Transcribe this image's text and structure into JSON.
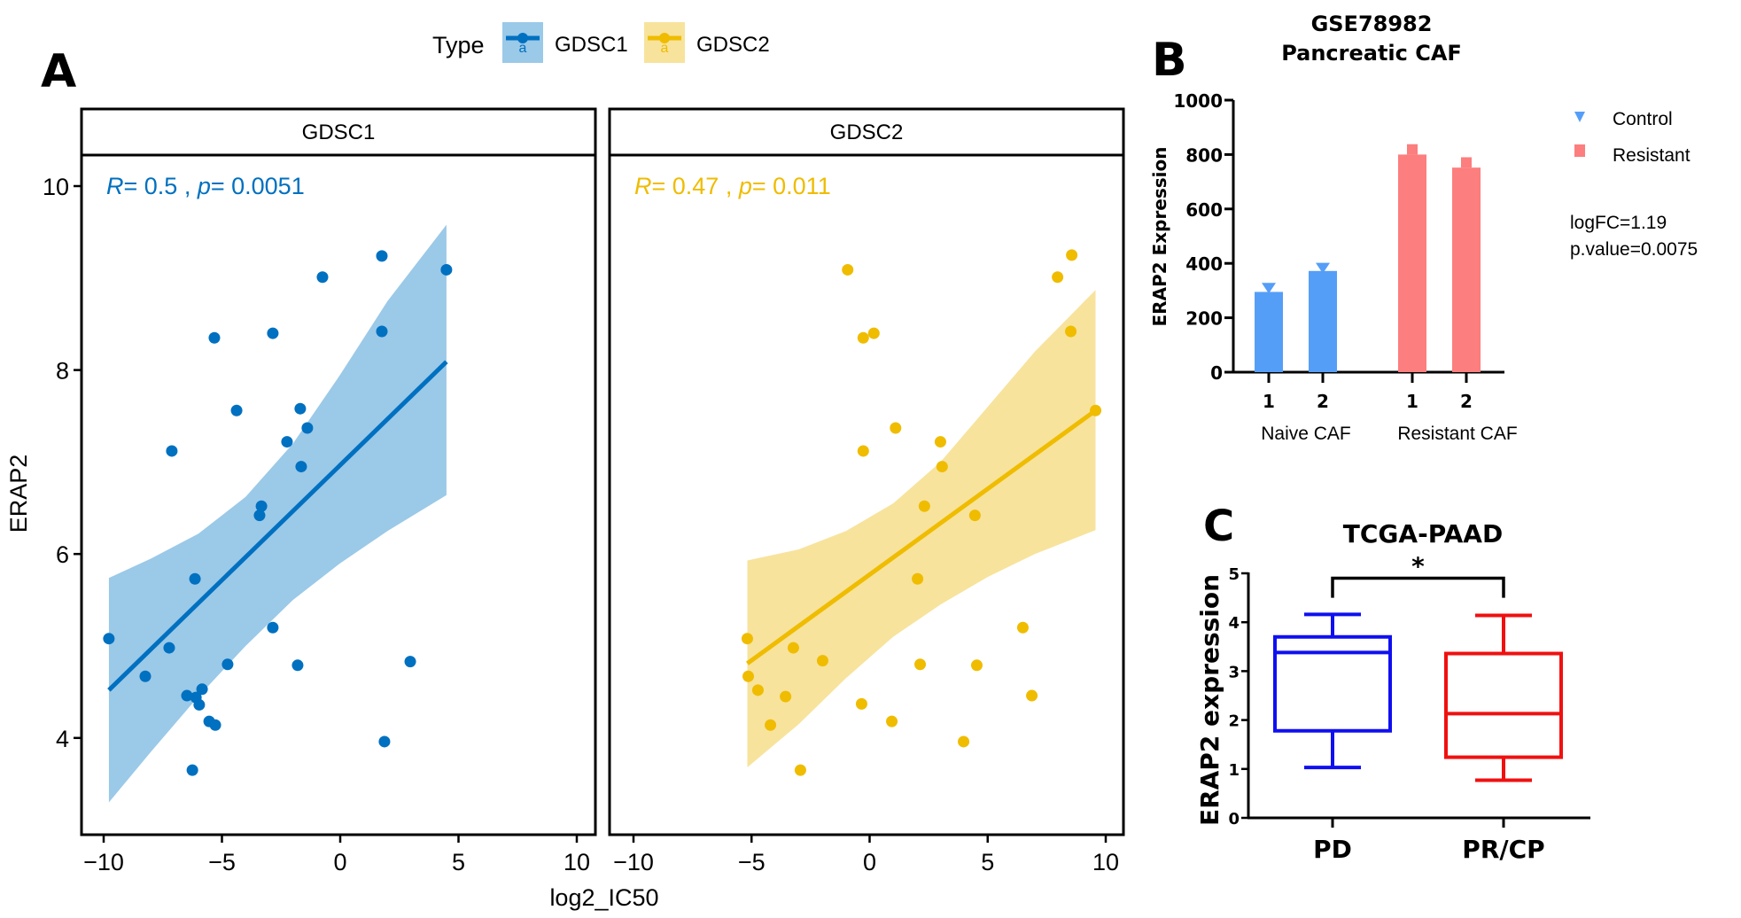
{
  "figure": {
    "panel_labels": {
      "A": "A",
      "B": "B",
      "C": "C"
    },
    "colors": {
      "gdsc1": "#0070C0",
      "gdsc1_band": "#9BC9E8",
      "gdsc2": "#EFBC00",
      "gdsc2_band": "#F7E39C",
      "control": "#559EF8",
      "resistant": "#FC7E7E",
      "pd": "#0F0FF0",
      "prcp": "#F01010"
    }
  },
  "chart_data": [
    {
      "id": "A",
      "type": "scatter",
      "legend": {
        "title": "Type",
        "entries": [
          "GDSC1",
          "GDSC2"
        ],
        "position": "top"
      },
      "xlabel": "log2_IC50",
      "ylabel": "ERAP2",
      "xlim": [
        -11,
        11
      ],
      "ylim": [
        2.7,
        10.5
      ],
      "xticks": [
        -10,
        -5,
        0,
        5,
        10
      ],
      "xtick_labels": [
        "−10",
        "−5",
        "0",
        "5",
        "10"
      ],
      "yticks": [
        4,
        6,
        8,
        10
      ],
      "ytick_labels": [
        "4",
        "6",
        "8",
        "10"
      ],
      "grid": false,
      "facets": [
        {
          "name": "GDSC1",
          "annotation": {
            "R_label": "R",
            "R_value": "= 0.5",
            "sep": " , ",
            "p_label": "p",
            "p_value": "= 0.0051"
          },
          "points": [
            [
              -9.78,
              5.08
            ],
            [
              -8.24,
              4.67
            ],
            [
              -7.23,
              4.98
            ],
            [
              -7.12,
              7.12
            ],
            [
              -6.48,
              4.46
            ],
            [
              -6.25,
              3.65
            ],
            [
              -6.14,
              5.73
            ],
            [
              -6.1,
              4.44
            ],
            [
              -5.96,
              4.36
            ],
            [
              -5.84,
              4.53
            ],
            [
              -5.54,
              4.18
            ],
            [
              -5.32,
              8.35
            ],
            [
              -5.28,
              4.14
            ],
            [
              -4.76,
              4.8
            ],
            [
              -4.38,
              7.56
            ],
            [
              -3.41,
              6.42
            ],
            [
              -3.33,
              6.52
            ],
            [
              -2.85,
              8.4
            ],
            [
              -2.85,
              5.2
            ],
            [
              -2.25,
              7.22
            ],
            [
              -1.8,
              4.79
            ],
            [
              -1.69,
              7.58
            ],
            [
              -1.65,
              6.95
            ],
            [
              -1.39,
              7.37
            ],
            [
              -0.75,
              9.01
            ],
            [
              1.76,
              9.24
            ],
            [
              1.76,
              8.42
            ],
            [
              1.87,
              3.96
            ],
            [
              2.96,
              4.83
            ],
            [
              4.49,
              9.09
            ]
          ],
          "fit": {
            "x": [
              -9.78,
              4.49
            ],
            "y": [
              4.52,
              8.09
            ]
          },
          "ci": {
            "x": [
              -9.78,
              -8,
              -6,
              -4,
              -2,
              0,
              2,
              4.49
            ],
            "upper": [
              5.74,
              5.95,
              6.22,
              6.62,
              7.2,
              7.95,
              8.75,
              9.58
            ],
            "lower": [
              3.3,
              3.85,
              4.45,
              5.0,
              5.5,
              5.9,
              6.25,
              6.64
            ]
          }
        },
        {
          "name": "GDSC2",
          "annotation": {
            "R_label": "R",
            "R_value": "= 0.47",
            "sep": " , ",
            "p_label": "p",
            "p_value": "= 0.011"
          },
          "points": [
            [
              -5.18,
              5.08
            ],
            [
              -5.14,
              4.67
            ],
            [
              -4.73,
              4.52
            ],
            [
              -4.2,
              4.14
            ],
            [
              -3.56,
              4.45
            ],
            [
              -3.23,
              4.98
            ],
            [
              -2.93,
              3.65
            ],
            [
              -1.99,
              4.84
            ],
            [
              -0.93,
              9.09
            ],
            [
              -0.34,
              4.37
            ],
            [
              -0.27,
              8.35
            ],
            [
              -0.27,
              7.12
            ],
            [
              0.18,
              8.4
            ],
            [
              0.94,
              4.18
            ],
            [
              1.1,
              7.37
            ],
            [
              2.03,
              5.73
            ],
            [
              2.14,
              4.8
            ],
            [
              2.32,
              6.52
            ],
            [
              3.0,
              7.22
            ],
            [
              3.07,
              6.95
            ],
            [
              3.98,
              3.96
            ],
            [
              4.46,
              6.42
            ],
            [
              4.54,
              4.79
            ],
            [
              6.49,
              5.2
            ],
            [
              6.87,
              4.46
            ],
            [
              7.96,
              9.01
            ],
            [
              8.52,
              8.42
            ],
            [
              8.56,
              9.25
            ],
            [
              9.57,
              7.56
            ]
          ],
          "fit": {
            "x": [
              -5.18,
              9.57
            ],
            "y": [
              4.81,
              7.56
            ]
          },
          "ci": {
            "x": [
              -5.18,
              -3,
              -1,
              1,
              3,
              5,
              7,
              9.57
            ],
            "upper": [
              5.93,
              6.05,
              6.25,
              6.55,
              7.0,
              7.6,
              8.2,
              8.87
            ],
            "lower": [
              3.68,
              4.15,
              4.65,
              5.1,
              5.45,
              5.75,
              6.0,
              6.26
            ]
          }
        }
      ]
    },
    {
      "id": "B",
      "type": "bar",
      "title_line1": "GSE78982",
      "title_line2": "Pancreatic CAF",
      "ylabel": "ERAP2 Expression",
      "ylim": [
        0,
        1000
      ],
      "yticks": [
        0,
        200,
        400,
        600,
        800,
        1000
      ],
      "ytick_labels": [
        "0",
        "200",
        "400",
        "600",
        "800",
        "1000"
      ],
      "categories": [
        "1",
        "2",
        "1",
        "2"
      ],
      "groups": [
        "Naive CAF",
        "Resistant CAF"
      ],
      "series": [
        {
          "name": "Control",
          "marker": "triangle-down",
          "values": [
            295,
            372
          ],
          "error_top": [
            328,
            402
          ],
          "group": "Naive CAF"
        },
        {
          "name": "Resistant",
          "marker": "square",
          "values": [
            800,
            752
          ],
          "error_top": [
            838,
            790
          ],
          "group": "Resistant CAF"
        }
      ],
      "legend": {
        "entries": [
          "Control",
          "Resistant"
        ],
        "position": "right"
      },
      "stats": {
        "logfc": "logFC=1.19",
        "pvalue": "p.value=0.0075"
      }
    },
    {
      "id": "C",
      "type": "box",
      "title": "TCGA-PAAD",
      "ylabel": "ERAP2 expression",
      "ylim": [
        0,
        5
      ],
      "yticks": [
        0,
        1,
        2,
        3,
        4,
        5
      ],
      "ytick_labels": [
        "0",
        "1",
        "2",
        "3",
        "4",
        "5"
      ],
      "categories": [
        "PD",
        "PR/CP"
      ],
      "boxes": [
        {
          "name": "PD",
          "min": 1.03,
          "q1": 1.78,
          "median": 3.38,
          "q3": 3.7,
          "max": 4.16
        },
        {
          "name": "PR/CP",
          "min": 0.77,
          "q1": 1.24,
          "median": 2.13,
          "q3": 3.36,
          "max": 4.14
        }
      ],
      "significance": {
        "label": "*",
        "between": [
          "PD",
          "PR/CP"
        ],
        "y": 4.9
      }
    }
  ]
}
